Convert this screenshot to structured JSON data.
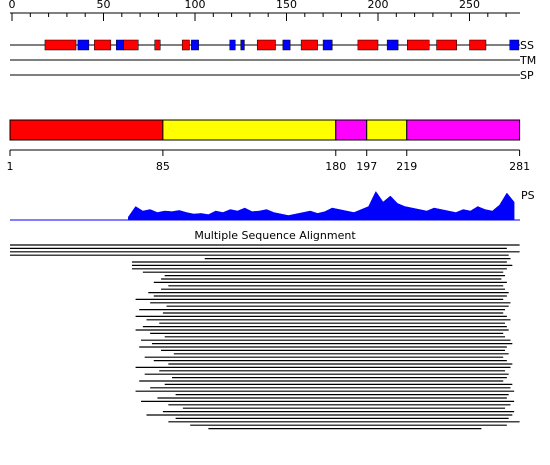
{
  "ruler": {
    "ticks": [
      0,
      10,
      20,
      30,
      40,
      50,
      60,
      70,
      80,
      90,
      100,
      110,
      120,
      130,
      140,
      150,
      160,
      170,
      180,
      190,
      200,
      210,
      220,
      230,
      240,
      250,
      260,
      270
    ],
    "labels": [
      0,
      50,
      100,
      150,
      200,
      250
    ]
  },
  "tracks": {
    "ss": "SS",
    "tm": "TM",
    "sp": "SP",
    "ps": "PS"
  },
  "ss": {
    "helix": [
      [
        18,
        35
      ],
      [
        45,
        54
      ],
      [
        61,
        69
      ],
      [
        78,
        81
      ],
      [
        93,
        97
      ],
      [
        134,
        144
      ],
      [
        158,
        167
      ],
      [
        189,
        200
      ],
      [
        216,
        228
      ],
      [
        232,
        243
      ],
      [
        250,
        259
      ]
    ],
    "strand": [
      [
        36,
        42
      ],
      [
        57,
        61
      ],
      [
        98,
        102
      ],
      [
        119,
        122
      ],
      [
        125,
        127
      ],
      [
        148,
        152
      ],
      [
        170,
        175
      ],
      [
        205,
        211
      ],
      [
        272,
        277
      ]
    ],
    "helix_color": "#ff0000",
    "strand_color": "#0000ff"
  },
  "domains": {
    "boundaries": [
      1,
      85,
      180,
      197,
      219,
      281
    ],
    "colors": [
      "#ff0000",
      "#ffff00",
      "#ff00ff",
      "#ffff00",
      "#ff00ff"
    ]
  },
  "ps": {
    "color": "#0000ff",
    "x": [
      66,
      70,
      74,
      78,
      82,
      86,
      90,
      94,
      98,
      102,
      106,
      110,
      114,
      118,
      122,
      126,
      130,
      134,
      138,
      142,
      146,
      150,
      154,
      158,
      162,
      166,
      170,
      174,
      178,
      182,
      186,
      190,
      194,
      198,
      202,
      206,
      210,
      214,
      218,
      222,
      226,
      230,
      234,
      238,
      242,
      246,
      250,
      254,
      258,
      262,
      266,
      270,
      274,
      278
    ],
    "values": [
      0.1,
      0.45,
      0.3,
      0.35,
      0.25,
      0.3,
      0.28,
      0.32,
      0.25,
      0.2,
      0.22,
      0.18,
      0.3,
      0.25,
      0.35,
      0.3,
      0.4,
      0.28,
      0.3,
      0.35,
      0.25,
      0.2,
      0.15,
      0.2,
      0.25,
      0.3,
      0.22,
      0.28,
      0.4,
      0.35,
      0.3,
      0.25,
      0.35,
      0.45,
      0.95,
      0.6,
      0.8,
      0.55,
      0.45,
      0.4,
      0.35,
      0.3,
      0.4,
      0.35,
      0.3,
      0.25,
      0.35,
      0.3,
      0.45,
      0.35,
      0.3,
      0.5,
      0.9,
      0.6
    ]
  },
  "msa": {
    "title": "Multiple Sequence Alignment",
    "ranges": [
      [
        1,
        281
      ],
      [
        1,
        274
      ],
      [
        1,
        281
      ],
      [
        1,
        275
      ],
      [
        108,
        276
      ],
      [
        68,
        274
      ],
      [
        68,
        277
      ],
      [
        68,
        274
      ],
      [
        74,
        272
      ],
      [
        86,
        273
      ],
      [
        84,
        271
      ],
      [
        80,
        274
      ],
      [
        88,
        272
      ],
      [
        84,
        273
      ],
      [
        77,
        275
      ],
      [
        80,
        274
      ],
      [
        70,
        272
      ],
      [
        78,
        276
      ],
      [
        87,
        275
      ],
      [
        72,
        273
      ],
      [
        85,
        272
      ],
      [
        70,
        274
      ],
      [
        76,
        276
      ],
      [
        83,
        273
      ],
      [
        74,
        274
      ],
      [
        70,
        275
      ],
      [
        78,
        272
      ],
      [
        86,
        273
      ],
      [
        73,
        276
      ],
      [
        79,
        277
      ],
      [
        72,
        274
      ],
      [
        84,
        273
      ],
      [
        91,
        275
      ],
      [
        75,
        272
      ],
      [
        80,
        274
      ],
      [
        88,
        277
      ],
      [
        70,
        276
      ],
      [
        83,
        273
      ],
      [
        75,
        275
      ],
      [
        90,
        274
      ],
      [
        72,
        272
      ],
      [
        86,
        277
      ],
      [
        78,
        276
      ],
      [
        70,
        278
      ],
      [
        92,
        275
      ],
      [
        82,
        274
      ],
      [
        73,
        278
      ],
      [
        88,
        276
      ],
      [
        96,
        273
      ],
      [
        85,
        278
      ],
      [
        76,
        277
      ],
      [
        92,
        275
      ],
      [
        88,
        281
      ],
      [
        100,
        274
      ],
      [
        110,
        260
      ]
    ]
  }
}
